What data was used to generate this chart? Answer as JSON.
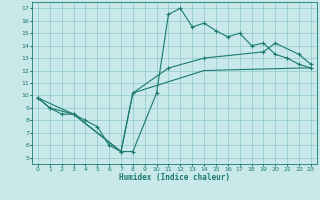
{
  "xlabel": "Humidex (Indice chaleur)",
  "background_color": "#c8e8ea",
  "line_color": "#1a7a6e",
  "xlim": [
    -0.5,
    23.5
  ],
  "ylim": [
    4.5,
    17.5
  ],
  "xticks": [
    0,
    1,
    2,
    3,
    4,
    5,
    6,
    7,
    8,
    9,
    10,
    11,
    12,
    13,
    14,
    15,
    16,
    17,
    18,
    19,
    20,
    21,
    22,
    23
  ],
  "yticks": [
    5,
    6,
    7,
    8,
    9,
    10,
    11,
    12,
    13,
    14,
    15,
    16,
    17
  ],
  "line1_x": [
    0,
    1,
    2,
    3,
    4,
    5,
    6,
    7,
    8,
    10,
    11,
    12,
    13,
    14,
    15,
    16,
    17,
    18,
    19,
    20,
    21,
    22,
    23
  ],
  "line1_y": [
    9.8,
    9.0,
    8.5,
    8.5,
    8.0,
    7.5,
    6.0,
    5.5,
    5.5,
    10.2,
    16.5,
    17.0,
    15.5,
    15.8,
    15.2,
    14.7,
    15.0,
    14.0,
    14.2,
    13.3,
    13.0,
    12.5,
    12.2
  ],
  "line2_x": [
    0,
    1,
    3,
    7,
    8,
    11,
    14,
    19,
    20,
    22,
    23
  ],
  "line2_y": [
    9.8,
    9.0,
    8.5,
    5.5,
    10.2,
    12.2,
    13.0,
    13.5,
    14.2,
    13.3,
    12.5
  ],
  "line3_x": [
    0,
    3,
    7,
    8,
    14,
    22,
    23
  ],
  "line3_y": [
    9.8,
    8.5,
    5.5,
    10.2,
    12.0,
    12.2,
    12.2
  ]
}
